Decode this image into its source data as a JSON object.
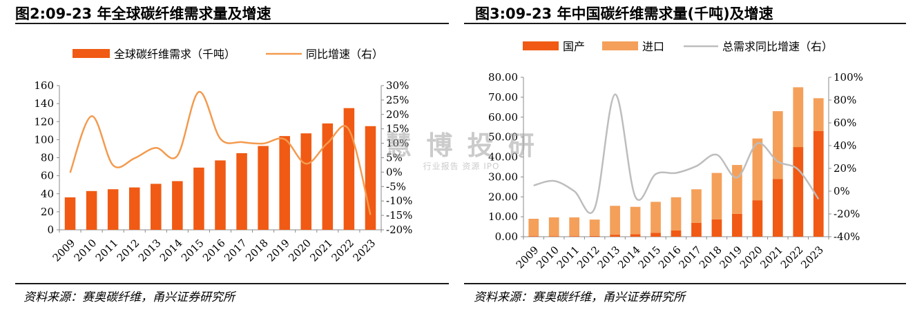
{
  "colors": {
    "domestic": "#f05a14",
    "import": "#f4a05a",
    "growth_left": "#f39a4e",
    "growth_right": "#bdbdbd",
    "axis": "#888888"
  },
  "left": {
    "title": "图2:09-23 年全球碳纤维需求量及增速",
    "source": "资料来源：赛奥碳纤维，甬兴证券研究所"
  },
  "right": {
    "title": "图3:09-23 年中国碳纤维需求量(千吨)及增速",
    "source": "资料来源：赛奥碳纤维，甬兴证券研究所"
  },
  "watermark": {
    "main": "慧 博 投 研",
    "sub": "行业报告 资源 IPO"
  },
  "chart_data": [
    {
      "type": "bar",
      "categories": [
        "2009",
        "2010",
        "2011",
        "2012",
        "2013",
        "2014",
        "2015",
        "2016",
        "2017",
        "2018",
        "2019",
        "2020",
        "2021",
        "2022",
        "2023"
      ],
      "series": [
        {
          "name": "全球碳纤维需求（千吨）",
          "type": "bar",
          "axis": "left",
          "values": [
            36,
            43,
            45,
            47,
            51,
            54,
            69,
            77,
            85,
            93,
            104,
            107,
            118,
            135,
            115
          ]
        },
        {
          "name": "同比增速（右）",
          "type": "line",
          "axis": "right",
          "values": [
            -0.2,
            19.4,
            2.4,
            4.8,
            8.4,
            5.7,
            27.8,
            11.6,
            10.4,
            9.9,
            11.4,
            2.9,
            10.1,
            14.7,
            -14.8
          ]
        }
      ],
      "y_left": {
        "min": 0,
        "max": 160,
        "ticks": [
          "0",
          "20",
          "40",
          "60",
          "80",
          "100",
          "120",
          "140",
          "160"
        ]
      },
      "y_right": {
        "min": -20,
        "max": 30,
        "ticks": [
          "-20%",
          "-15%",
          "-10%",
          "-5%",
          "0%",
          "5%",
          "10%",
          "15%",
          "20%",
          "25%",
          "30%"
        ]
      },
      "legend": "top",
      "grid": false
    },
    {
      "type": "bar",
      "stacked": true,
      "categories": [
        "2009",
        "2010",
        "2011",
        "2012",
        "2013",
        "2014",
        "2015",
        "2016",
        "2017",
        "2018",
        "2019",
        "2020",
        "2021",
        "2022",
        "2023"
      ],
      "series": [
        {
          "name": "国产",
          "type": "bar",
          "axis": "left",
          "values": [
            0.3,
            0.3,
            0.3,
            0.4,
            1.0,
            1.2,
            2.0,
            3.2,
            7.0,
            8.7,
            11.5,
            18.3,
            29.0,
            45.0,
            53.0
          ]
        },
        {
          "name": "进口",
          "type": "bar",
          "axis": "left",
          "values": [
            8.7,
            9.4,
            9.4,
            8.2,
            14.5,
            13.8,
            15.5,
            16.6,
            16.8,
            23.3,
            24.5,
            31.0,
            34.0,
            30.0,
            16.5
          ]
        },
        {
          "name": "总需求同比增速（右）",
          "type": "line",
          "axis": "right",
          "values": [
            5,
            9,
            0,
            -15,
            85,
            -5,
            15,
            16,
            22,
            32,
            12,
            42,
            26,
            19,
            -7
          ]
        }
      ],
      "y_left": {
        "min": 0,
        "max": 80,
        "ticks": [
          "0.00",
          "10.00",
          "20.00",
          "30.00",
          "40.00",
          "50.00",
          "60.00",
          "70.00",
          "80.00"
        ]
      },
      "y_right": {
        "min": -40,
        "max": 100,
        "ticks": [
          "-40%",
          "-20%",
          "0%",
          "20%",
          "40%",
          "60%",
          "80%",
          "100%"
        ]
      },
      "legend": "top",
      "grid": false
    }
  ]
}
